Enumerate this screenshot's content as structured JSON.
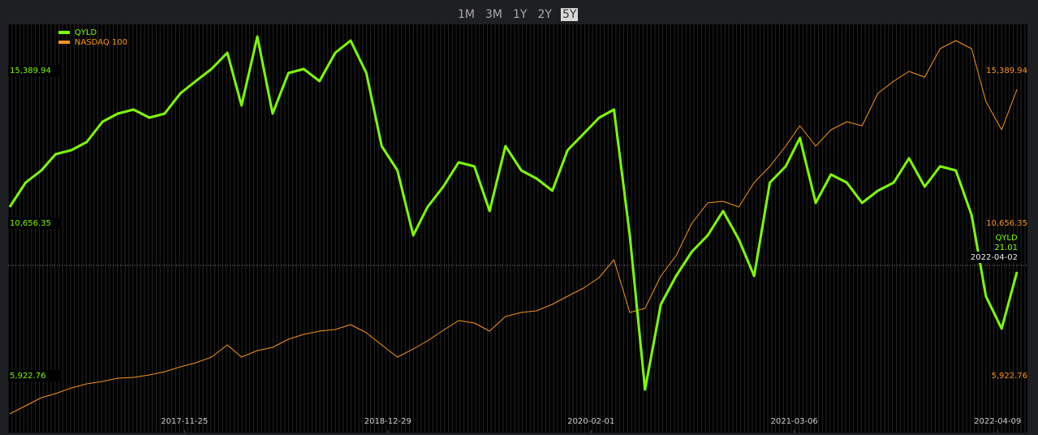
{
  "range_selector": {
    "options": [
      "1M",
      "3M",
      "1Y",
      "2Y",
      "5Y"
    ],
    "selected": "5Y"
  },
  "chart_data": {
    "type": "line",
    "x": [
      "2016-12-17",
      "2017-01-17",
      "2017-02-17",
      "2017-03-17",
      "2017-04-17",
      "2017-05-17",
      "2017-06-17",
      "2017-07-17",
      "2017-08-17",
      "2017-09-17",
      "2017-10-17",
      "2017-11-17",
      "2017-12-17",
      "2018-01-17",
      "2018-02-17",
      "2018-03-17",
      "2018-04-17",
      "2018-05-17",
      "2018-06-17",
      "2018-07-17",
      "2018-08-17",
      "2018-09-17",
      "2018-10-17",
      "2018-11-17",
      "2018-12-17",
      "2019-01-17",
      "2019-02-17",
      "2019-03-17",
      "2019-04-17",
      "2019-05-17",
      "2019-06-17",
      "2019-07-17",
      "2019-08-17",
      "2019-09-17",
      "2019-10-17",
      "2019-11-17",
      "2019-12-17",
      "2020-01-17",
      "2020-02-17",
      "2020-03-17",
      "2020-04-17",
      "2020-05-17",
      "2020-06-17",
      "2020-07-17",
      "2020-08-17",
      "2020-09-17",
      "2020-10-17",
      "2020-11-17",
      "2020-12-17",
      "2021-01-17",
      "2021-02-17",
      "2021-03-17",
      "2021-04-17",
      "2021-05-17",
      "2021-06-17",
      "2021-07-17",
      "2021-08-17",
      "2021-09-17",
      "2021-10-17",
      "2021-11-17",
      "2021-12-17",
      "2022-01-17",
      "2022-02-17",
      "2022-03-17",
      "2022-04-17",
      "2022-05-17"
    ],
    "series": [
      {
        "name": "QYLD",
        "color": "#7dfc00",
        "axis": "y",
        "values": [
          11160,
          11915,
          12293,
          12797,
          12923,
          13175,
          13804,
          14056,
          14182,
          13930,
          14056,
          14685,
          15063,
          15440,
          15944,
          14307,
          16448,
          14056,
          15315,
          15440,
          15063,
          15944,
          16322,
          15315,
          13048,
          12293,
          10279,
          11160,
          11789,
          12545,
          12419,
          11034,
          13048,
          12293,
          12041,
          11663,
          12923,
          13426,
          13930,
          14182,
          10279,
          5495,
          8138,
          9020,
          9775,
          10279,
          11034,
          10153,
          9020,
          11915,
          12419,
          13300,
          11286,
          12167,
          11915,
          11286,
          11663,
          11915,
          12671,
          11789,
          12419,
          12293,
          10908,
          8390,
          7383,
          9146
        ]
      },
      {
        "name": "NASDAQ 100",
        "color": "#f7931e",
        "axis": "y2",
        "values": [
          4739,
          4991,
          5243,
          5369,
          5545,
          5671,
          5746,
          5847,
          5872,
          5948,
          6049,
          6200,
          6326,
          6502,
          6879,
          6502,
          6703,
          6804,
          7056,
          7207,
          7308,
          7358,
          7509,
          7257,
          6879,
          6502,
          6754,
          7005,
          7333,
          7635,
          7559,
          7308,
          7761,
          7887,
          7937,
          8138,
          8390,
          8642,
          8969,
          9523,
          7887,
          8013,
          9020,
          9649,
          10656,
          11286,
          11336,
          11160,
          11915,
          12419,
          13048,
          13678,
          13048,
          13552,
          13804,
          13678,
          14685,
          15063,
          15365,
          15189,
          16070,
          16322,
          16070,
          14433,
          13552,
          14811
        ]
      }
    ],
    "xlim": [
      "2016-12-17",
      "2022-06-05"
    ],
    "xticks": [
      "2017-11-25",
      "2018-12-29",
      "2020-02-01",
      "2021-03-06",
      "2022-04-09"
    ],
    "ylim": [
      4236,
      16825
    ],
    "yticks": [
      {
        "value": 5922.76,
        "label": "5,922.76"
      },
      {
        "value": 10656.35,
        "label": "10,656.35"
      },
      {
        "value": 15389.94,
        "label": "15,389.94"
      }
    ],
    "y2lim": [
      4236,
      16825
    ],
    "y2ticks": [
      {
        "value": 5922.76,
        "label": "5,922.76"
      },
      {
        "value": 10656.35,
        "label": "10,656.35"
      },
      {
        "value": 15389.94,
        "label": "15,389.94"
      }
    ],
    "legend": "top-left",
    "tooltip": {
      "name": "QYLD",
      "value": "21.01",
      "date": "2022-04-02"
    }
  }
}
